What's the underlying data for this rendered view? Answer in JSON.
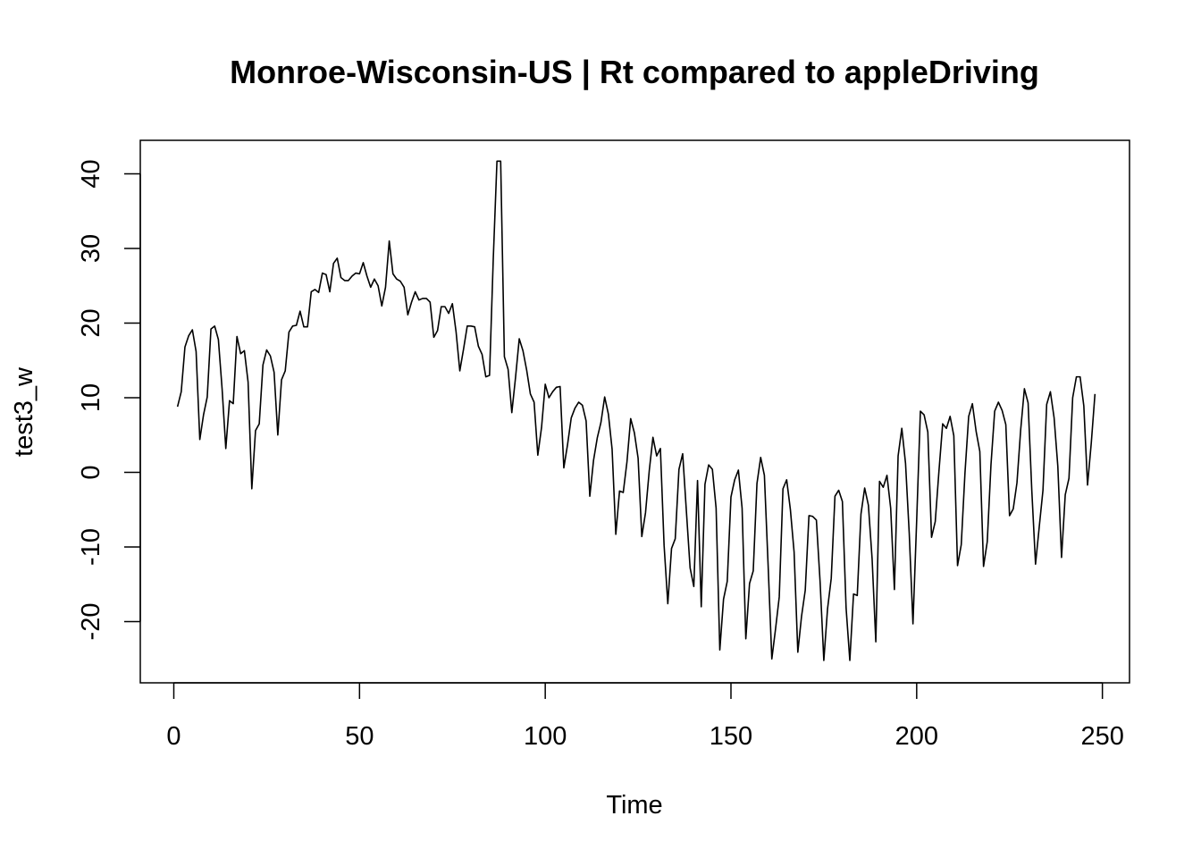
{
  "chart_data": {
    "type": "line",
    "title": "Monroe-Wisconsin-US | Rt compared to appleDriving",
    "xlabel": "Time",
    "ylabel": "test3_w",
    "xlim": [
      1,
      248
    ],
    "ylim": [
      -25.2,
      41.7
    ],
    "x_ticks": [
      0,
      50,
      100,
      150,
      200,
      250
    ],
    "y_ticks": [
      -20,
      -10,
      0,
      10,
      20,
      30,
      40
    ],
    "grid": false,
    "series": [
      {
        "color": "#000000",
        "x": [
          1,
          2,
          3,
          4,
          5,
          6,
          7,
          8,
          9,
          10,
          11,
          12,
          13,
          14,
          15,
          16,
          17,
          18,
          19,
          20,
          21,
          22,
          23,
          24,
          25,
          26,
          27,
          28,
          29,
          30,
          31,
          32,
          33,
          34,
          35,
          36,
          37,
          38,
          39,
          40,
          41,
          42,
          43,
          44,
          45,
          46,
          47,
          48,
          49,
          50,
          51,
          52,
          53,
          54,
          55,
          56,
          57,
          58,
          59,
          60,
          61,
          62,
          63,
          64,
          65,
          66,
          67,
          68,
          69,
          70,
          71,
          72,
          73,
          74,
          75,
          76,
          77,
          78,
          79,
          80,
          81,
          82,
          83,
          84,
          85,
          86,
          87,
          88,
          89,
          90,
          91,
          92,
          93,
          94,
          95,
          96,
          97,
          98,
          99,
          100,
          101,
          102,
          103,
          104,
          105,
          106,
          107,
          108,
          109,
          110,
          111,
          112,
          113,
          114,
          115,
          116,
          117,
          118,
          119,
          120,
          121,
          122,
          123,
          124,
          125,
          126,
          127,
          128,
          129,
          130,
          131,
          132,
          133,
          134,
          135,
          136,
          137,
          138,
          139,
          140,
          141,
          142,
          143,
          144,
          145,
          146,
          147,
          148,
          149,
          150,
          151,
          152,
          153,
          154,
          155,
          156,
          157,
          158,
          159,
          160,
          161,
          162,
          163,
          164,
          165,
          166,
          167,
          168,
          169,
          170,
          171,
          172,
          173,
          174,
          175,
          176,
          177,
          178,
          179,
          180,
          181,
          182,
          183,
          184,
          185,
          186,
          187,
          188,
          189,
          190,
          191,
          192,
          193,
          194,
          195,
          196,
          197,
          198,
          199,
          200,
          201,
          202,
          203,
          204,
          205,
          206,
          207,
          208,
          209,
          210,
          211,
          212,
          213,
          214,
          215,
          216,
          217,
          218,
          219,
          220,
          221,
          222,
          223,
          224,
          225,
          226,
          227,
          228,
          229,
          230,
          231,
          232,
          233,
          234,
          235,
          236,
          237,
          238,
          239,
          240,
          241,
          242,
          243,
          244,
          245,
          246,
          247,
          248
        ],
        "y": [
          8.8,
          10.8,
          16.8,
          18.3,
          19.1,
          16.2,
          4.4,
          7.7,
          10.1,
          19.2,
          19.6,
          17.8,
          11.2,
          3.2,
          9.6,
          9.2,
          18.2,
          15.9,
          16.3,
          12.1,
          -2.2,
          5.6,
          6.5,
          14.4,
          16.4,
          15.6,
          13.4,
          5.0,
          12.4,
          13.6,
          18.8,
          19.6,
          19.7,
          21.6,
          19.5,
          19.5,
          24.2,
          24.5,
          24.1,
          26.7,
          26.5,
          24.2,
          28.0,
          28.7,
          26.1,
          25.7,
          25.7,
          26.3,
          26.7,
          26.6,
          28.1,
          26.3,
          24.8,
          25.9,
          25.0,
          22.3,
          24.8,
          31.0,
          26.6,
          25.9,
          25.6,
          24.8,
          21.1,
          22.8,
          24.2,
          23.1,
          23.3,
          23.3,
          22.8,
          18.1,
          19.0,
          22.2,
          22.2,
          21.3,
          22.6,
          18.8,
          13.6,
          16.5,
          19.6,
          19.6,
          19.5,
          16.9,
          15.8,
          12.8,
          13.0,
          28.5,
          41.7,
          41.7,
          15.5,
          13.8,
          8.0,
          12.7,
          17.9,
          16.3,
          13.7,
          10.5,
          9.4,
          2.3,
          6.0,
          11.8,
          10.0,
          10.8,
          11.4,
          11.5,
          0.6,
          3.7,
          7.3,
          8.6,
          9.4,
          9.0,
          6.9,
          -3.2,
          1.6,
          4.6,
          6.7,
          10.1,
          7.8,
          3.1,
          -8.3,
          -2.5,
          -2.7,
          1.4,
          7.2,
          5.3,
          1.9,
          -8.6,
          -5.4,
          0.2,
          4.7,
          2.2,
          3.2,
          -9.8,
          -17.6,
          -10.2,
          -8.9,
          0.4,
          2.5,
          -5.2,
          -12.8,
          -15.3,
          -1.1,
          -18.0,
          -1.6,
          1.0,
          0.4,
          -4.8,
          -23.8,
          -17.0,
          -14.6,
          -3.3,
          -1.0,
          0.3,
          -4.8,
          -22.3,
          -14.9,
          -13.2,
          -1.5,
          2.0,
          -0.4,
          -12.4,
          -25.0,
          -21.0,
          -16.7,
          -2.2,
          -1.0,
          -5.0,
          -10.7,
          -24.1,
          -19.3,
          -15.8,
          -5.8,
          -5.9,
          -6.4,
          -14.7,
          -25.2,
          -18.3,
          -14.2,
          -3.2,
          -2.4,
          -3.9,
          -18.2,
          -25.2,
          -16.3,
          -16.5,
          -5.6,
          -2.1,
          -4.4,
          -11.6,
          -22.7,
          -1.2,
          -2.0,
          -0.4,
          -4.8,
          -15.7,
          2.2,
          5.9,
          1.2,
          -8.2,
          -20.3,
          -6.4,
          8.2,
          7.7,
          5.4,
          -8.7,
          -6.6,
          0.2,
          6.5,
          5.9,
          7.5,
          4.9,
          -12.5,
          -9.7,
          -0.1,
          7.5,
          9.2,
          5.5,
          2.8,
          -12.6,
          -9.3,
          1.0,
          8.2,
          9.4,
          8.3,
          6.4,
          -5.8,
          -4.9,
          -1.4,
          5.7,
          11.2,
          9.3,
          -2.5,
          -12.3,
          -7.3,
          -2.4,
          9.1,
          10.8,
          7.3,
          0.8,
          -11.4,
          -3.0,
          -0.8,
          10.0,
          12.8,
          12.8,
          8.9,
          -1.7,
          3.9,
          10.5
        ]
      }
    ]
  }
}
